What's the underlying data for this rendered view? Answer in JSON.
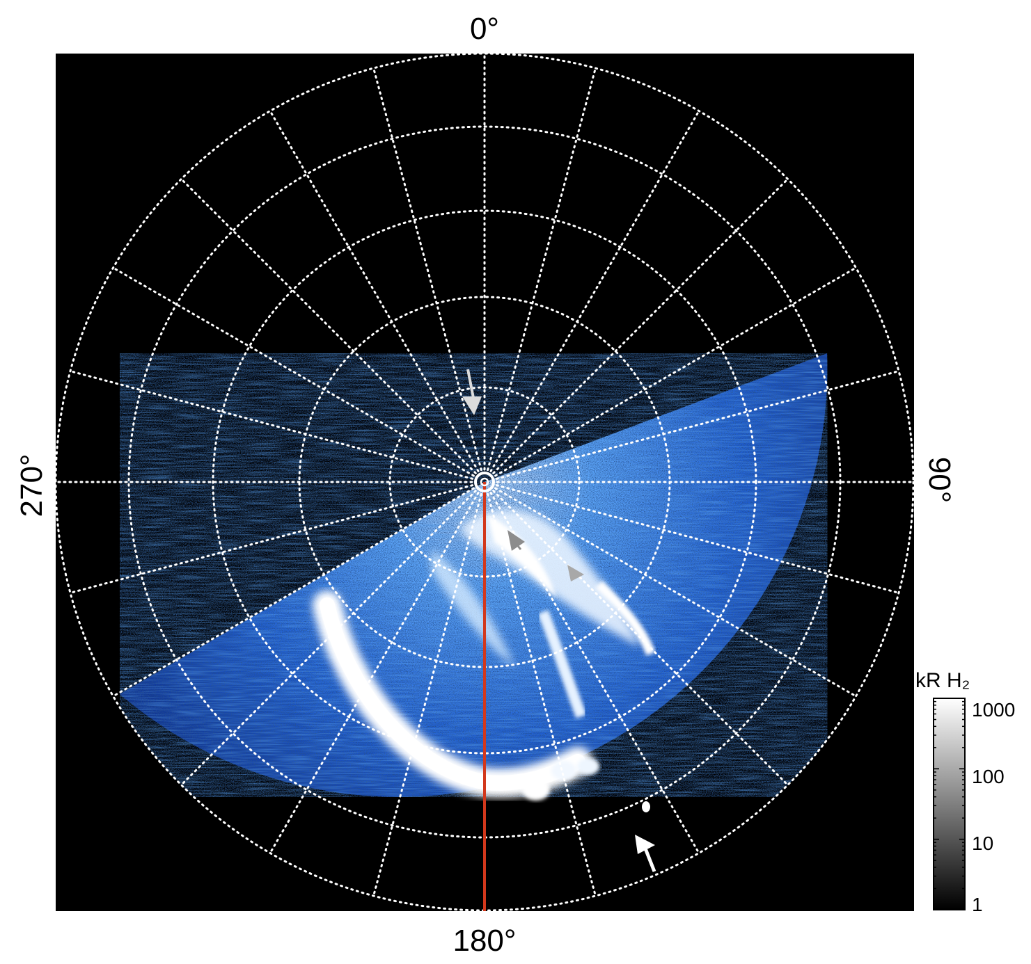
{
  "figure": {
    "labels": {
      "top": "0°",
      "bottom": "180°",
      "left": "270°",
      "right": "90°"
    },
    "colorbar": {
      "title": "kR H₂",
      "ticks": [
        "1000",
        "100",
        "10",
        "1"
      ]
    },
    "colors": {
      "background": "#000000",
      "grid": "#ffffff",
      "aurora_bright": "#ffffff",
      "aurora_mid": "#3a86ff",
      "aurora_dark": "#0a2a7a",
      "meridian": "#d2381c",
      "arrow_light": "#dcdcdc",
      "arrow_gray": "#a0a0a0"
    },
    "icons": [
      "pole-marker-icon",
      "arrow-icon"
    ]
  }
}
